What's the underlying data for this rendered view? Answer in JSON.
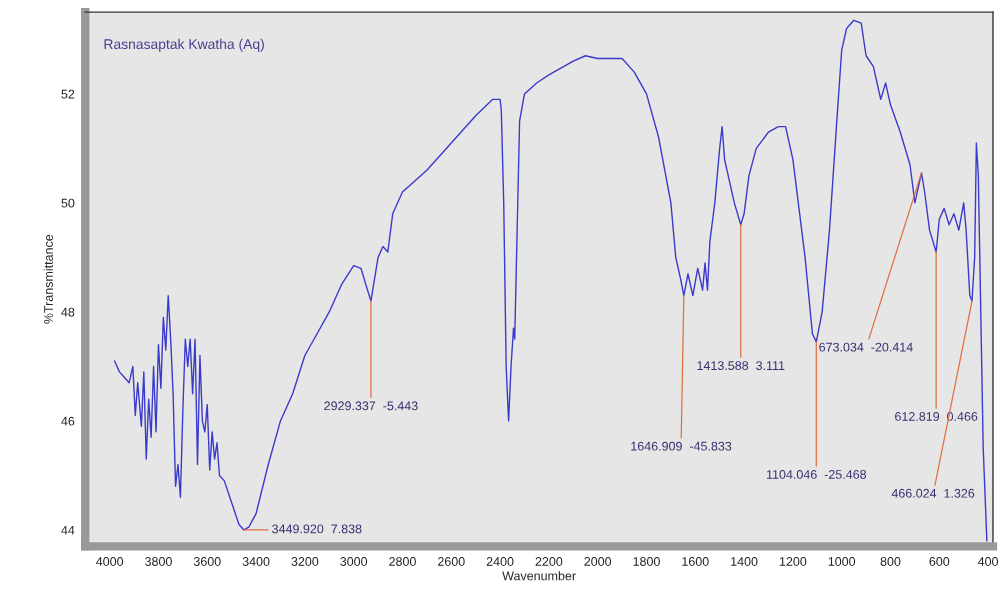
{
  "chart_data": {
    "type": "line",
    "title": "Rasnasaptak Kwatha (Aq)",
    "xlabel": "Wavenumber",
    "ylabel": "%Transmittance",
    "xlim": [
      4100,
      380
    ],
    "ylim": [
      43.7,
      53.5
    ],
    "xticks": [
      4000,
      3800,
      3600,
      3400,
      3200,
      3000,
      2800,
      2600,
      2400,
      2200,
      2000,
      1800,
      1600,
      1400,
      1200,
      1000,
      800,
      600,
      400
    ],
    "yticks": [
      44,
      46,
      48,
      50,
      52
    ],
    "grid": false,
    "legend": false,
    "series": [
      {
        "color": "#3a3acc",
        "x": [
          3980,
          3960,
          3940,
          3920,
          3905,
          3895,
          3885,
          3870,
          3860,
          3850,
          3840,
          3830,
          3820,
          3810,
          3800,
          3790,
          3780,
          3770,
          3760,
          3750,
          3740,
          3730,
          3720,
          3710,
          3700,
          3690,
          3680,
          3670,
          3660,
          3650,
          3640,
          3630,
          3620,
          3610,
          3600,
          3590,
          3580,
          3570,
          3560,
          3550,
          3530,
          3500,
          3470,
          3449.92,
          3430,
          3400,
          3350,
          3300,
          3250,
          3200,
          3150,
          3100,
          3050,
          3000,
          2970,
          2950,
          2929.337,
          2900,
          2880,
          2860,
          2840,
          2800,
          2700,
          2600,
          2500,
          2430,
          2400,
          2395,
          2385,
          2375,
          2365,
          2355,
          2345,
          2340,
          2330,
          2320,
          2300,
          2250,
          2200,
          2100,
          2050,
          2000,
          1900,
          1850,
          1800,
          1750,
          1700,
          1680,
          1660,
          1646.909,
          1630,
          1610,
          1590,
          1570,
          1560,
          1550,
          1540,
          1520,
          1500,
          1490,
          1480,
          1460,
          1440,
          1413.588,
          1400,
          1380,
          1350,
          1300,
          1260,
          1230,
          1200,
          1150,
          1120,
          1104.046,
          1080,
          1050,
          1020,
          1000,
          980,
          950,
          920,
          900,
          870,
          840,
          820,
          800,
          760,
          720,
          700,
          673.034,
          660,
          640,
          612.819,
          600,
          580,
          560,
          540,
          520,
          500,
          490,
          475,
          466.024,
          455,
          448,
          440,
          430,
          420,
          405
        ],
        "values": [
          47.1,
          46.9,
          46.8,
          46.7,
          47.0,
          46.1,
          46.7,
          45.9,
          46.9,
          45.3,
          46.4,
          45.7,
          47.0,
          45.8,
          47.4,
          46.6,
          47.9,
          47.3,
          48.3,
          47.5,
          46.5,
          44.8,
          45.2,
          44.6,
          46.2,
          47.5,
          47.0,
          47.5,
          46.5,
          47.5,
          45.2,
          47.2,
          46.0,
          45.8,
          46.3,
          45.1,
          45.8,
          45.3,
          45.6,
          45.0,
          44.9,
          44.5,
          44.1,
          44.0,
          44.05,
          44.3,
          45.2,
          46.0,
          46.5,
          47.2,
          47.6,
          48.0,
          48.5,
          48.85,
          48.8,
          48.5,
          48.2,
          49.0,
          49.2,
          49.1,
          49.8,
          50.2,
          50.6,
          51.1,
          51.6,
          51.9,
          51.9,
          51.7,
          50.0,
          47.0,
          46.0,
          47.0,
          47.7,
          47.5,
          49.5,
          51.5,
          52.0,
          52.2,
          52.35,
          52.6,
          52.7,
          52.65,
          52.65,
          52.4,
          52.0,
          51.2,
          50.0,
          49.0,
          48.6,
          48.3,
          48.7,
          48.3,
          48.8,
          48.4,
          48.9,
          48.4,
          49.3,
          50.0,
          51.0,
          51.4,
          50.8,
          50.4,
          50.0,
          49.6,
          49.8,
          50.5,
          51.0,
          51.3,
          51.4,
          51.4,
          50.8,
          49.0,
          47.6,
          47.45,
          48.0,
          49.5,
          51.5,
          52.8,
          53.2,
          53.35,
          53.3,
          52.7,
          52.5,
          51.9,
          52.2,
          51.8,
          51.3,
          50.7,
          50.0,
          50.55,
          50.2,
          49.5,
          49.1,
          49.7,
          49.9,
          49.6,
          49.8,
          49.5,
          50.0,
          49.5,
          48.3,
          48.2,
          49.0,
          51.1,
          50.5,
          48.0,
          45.5,
          43.8
        ]
      }
    ],
    "annotations": [
      {
        "text": "3449.920  7.838",
        "x": 3449.92,
        "y": 44.0
      },
      {
        "text": "2929.337  -5.443",
        "x": 2929.337,
        "y": 48.2
      },
      {
        "text": "1646.909  -45.833",
        "x": 1646.909,
        "y": 48.3
      },
      {
        "text": "1413.588  3.111",
        "x": 1413.588,
        "y": 49.6
      },
      {
        "text": "1104.046  -25.468",
        "x": 1104.046,
        "y": 47.45
      },
      {
        "text": "673.034  -20.414",
        "x": 673.034,
        "y": 50.55
      },
      {
        "text": "612.819  0.466",
        "x": 612.819,
        "y": 49.1
      },
      {
        "text": "466.024  1.326",
        "x": 466.024,
        "y": 48.2
      }
    ]
  }
}
